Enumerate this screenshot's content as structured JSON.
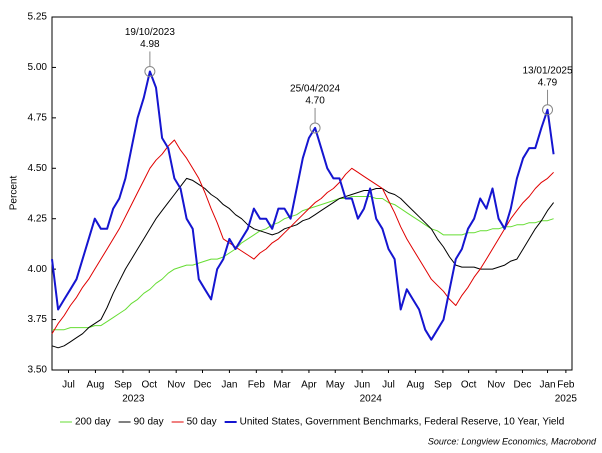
{
  "chart_data": {
    "type": "line",
    "y_label": "Percent",
    "source": "Source: Longview Economics, Macrobond",
    "xlim": [
      0,
      85
    ],
    "xticks": [
      {
        "value": 2.7,
        "label": "Jul"
      },
      {
        "value": 7.1,
        "label": "Aug"
      },
      {
        "value": 11.6,
        "label": "Sep"
      },
      {
        "value": 15.9,
        "label": "Oct"
      },
      {
        "value": 20.3,
        "label": "Nov"
      },
      {
        "value": 24.6,
        "label": "Dec"
      },
      {
        "value": 29,
        "label": "Jan"
      },
      {
        "value": 33.4,
        "label": "Feb"
      },
      {
        "value": 37.6,
        "label": "Mar"
      },
      {
        "value": 42,
        "label": "Apr"
      },
      {
        "value": 46.3,
        "label": "May"
      },
      {
        "value": 50.7,
        "label": "Jun"
      },
      {
        "value": 55,
        "label": "Jul"
      },
      {
        "value": 59.4,
        "label": "Aug"
      },
      {
        "value": 63.9,
        "label": "Sep"
      },
      {
        "value": 68.1,
        "label": "Oct"
      },
      {
        "value": 72.6,
        "label": "Nov"
      },
      {
        "value": 76.9,
        "label": "Dec"
      },
      {
        "value": 81,
        "label": "Jan"
      },
      {
        "value": 84,
        "label": "Feb"
      }
    ],
    "year_labels": [
      {
        "value": 13.3,
        "label": "2023"
      },
      {
        "value": 52.1,
        "label": "2024"
      },
      {
        "value": 84,
        "label": "2025"
      }
    ],
    "ylim": [
      3.5,
      5.25
    ],
    "yticks": [
      {
        "value": 3.5,
        "label": "3.50"
      },
      3.75,
      {
        "value": 4,
        "label": "4.00"
      },
      4.25,
      {
        "value": 4.5,
        "label": "4.50"
      },
      4.75,
      {
        "value": 5,
        "label": "5.00"
      },
      5.25
    ],
    "legend": "bottom",
    "series": [
      {
        "name": "200 day",
        "color": "#66dd33",
        "width": 1,
        "values": [
          3.7,
          3.7,
          3.7,
          3.71,
          3.71,
          3.71,
          3.71,
          3.72,
          3.72,
          3.74,
          3.76,
          3.78,
          3.8,
          3.83,
          3.85,
          3.88,
          3.9,
          3.93,
          3.95,
          3.98,
          4.0,
          4.01,
          4.02,
          4.02,
          4.03,
          4.04,
          4.05,
          4.05,
          4.06,
          4.08,
          4.1,
          4.13,
          4.15,
          4.17,
          4.19,
          4.2,
          4.22,
          4.23,
          4.25,
          4.26,
          4.27,
          4.29,
          4.3,
          4.31,
          4.32,
          4.33,
          4.34,
          4.35,
          4.35,
          4.36,
          4.36,
          4.36,
          4.36,
          4.35,
          4.35,
          4.33,
          4.32,
          4.3,
          4.28,
          4.26,
          4.24,
          4.22,
          4.2,
          4.19,
          4.17,
          4.17,
          4.17,
          4.17,
          4.18,
          4.18,
          4.19,
          4.19,
          4.2,
          4.2,
          4.21,
          4.21,
          4.22,
          4.22,
          4.23,
          4.23,
          4.24,
          4.24,
          4.25
        ]
      },
      {
        "name": "90 day",
        "color": "#000000",
        "width": 1,
        "values": [
          3.62,
          3.61,
          3.62,
          3.64,
          3.66,
          3.68,
          3.71,
          3.73,
          3.75,
          3.81,
          3.88,
          3.94,
          4.0,
          4.05,
          4.1,
          4.15,
          4.2,
          4.25,
          4.29,
          4.33,
          4.37,
          4.41,
          4.45,
          4.44,
          4.42,
          4.4,
          4.37,
          4.35,
          4.32,
          4.3,
          4.27,
          4.25,
          4.22,
          4.2,
          4.19,
          4.18,
          4.17,
          4.18,
          4.2,
          4.21,
          4.22,
          4.24,
          4.25,
          4.27,
          4.29,
          4.31,
          4.33,
          4.35,
          4.36,
          4.37,
          4.38,
          4.39,
          4.39,
          4.4,
          4.4,
          4.38,
          4.37,
          4.35,
          4.32,
          4.29,
          4.26,
          4.23,
          4.2,
          4.15,
          4.11,
          4.06,
          4.02,
          4.01,
          4.01,
          4.01,
          4.0,
          4.0,
          4.0,
          4.01,
          4.02,
          4.04,
          4.05,
          4.1,
          4.15,
          4.2,
          4.24,
          4.29,
          4.33
        ]
      },
      {
        "name": "50 day",
        "color": "#e00000",
        "width": 1,
        "values": [
          3.68,
          3.73,
          3.77,
          3.82,
          3.86,
          3.91,
          3.95,
          4.0,
          4.05,
          4.1,
          4.15,
          4.2,
          4.26,
          4.32,
          4.38,
          4.44,
          4.5,
          4.54,
          4.57,
          4.61,
          4.64,
          4.59,
          4.55,
          4.5,
          4.45,
          4.38,
          4.3,
          4.23,
          4.15,
          4.13,
          4.11,
          4.09,
          4.07,
          4.05,
          4.08,
          4.1,
          4.13,
          4.15,
          4.18,
          4.21,
          4.24,
          4.27,
          4.3,
          4.33,
          4.35,
          4.38,
          4.4,
          4.43,
          4.47,
          4.5,
          4.48,
          4.46,
          4.44,
          4.42,
          4.4,
          4.34,
          4.28,
          4.21,
          4.15,
          4.1,
          4.05,
          4.0,
          3.95,
          3.92,
          3.89,
          3.85,
          3.82,
          3.87,
          3.91,
          3.96,
          4.0,
          4.05,
          4.1,
          4.15,
          4.2,
          4.25,
          4.29,
          4.33,
          4.36,
          4.4,
          4.43,
          4.45,
          4.48
        ]
      },
      {
        "name": "United States, Government Benchmarks, Federal Reserve, 10 Year, Yield",
        "color": "#1515d0",
        "width": 2,
        "values": [
          4.05,
          3.8,
          3.85,
          3.9,
          3.95,
          4.05,
          4.15,
          4.25,
          4.2,
          4.2,
          4.3,
          4.35,
          4.45,
          4.6,
          4.75,
          4.85,
          4.98,
          4.9,
          4.65,
          4.6,
          4.45,
          4.4,
          4.25,
          4.2,
          3.95,
          3.9,
          3.85,
          4.0,
          4.05,
          4.15,
          4.1,
          4.15,
          4.2,
          4.3,
          4.25,
          4.25,
          4.2,
          4.3,
          4.3,
          4.25,
          4.4,
          4.55,
          4.65,
          4.7,
          4.6,
          4.5,
          4.45,
          4.45,
          4.35,
          4.35,
          4.25,
          4.3,
          4.4,
          4.25,
          4.2,
          4.1,
          4.05,
          3.8,
          3.9,
          3.85,
          3.8,
          3.7,
          3.65,
          3.7,
          3.75,
          3.9,
          4.05,
          4.1,
          4.2,
          4.25,
          4.35,
          4.3,
          4.4,
          4.25,
          4.2,
          4.3,
          4.45,
          4.55,
          4.6,
          4.6,
          4.7,
          4.79,
          4.57
        ]
      }
    ],
    "annotations": [
      {
        "x": 16,
        "date": "19/10/2023",
        "value": 4.98
      },
      {
        "x": 43,
        "date": "25/04/2024",
        "value": 4.7,
        "value_label": "4.70"
      },
      {
        "x": 81,
        "date": "13/01/2025",
        "value": 4.79
      }
    ]
  }
}
